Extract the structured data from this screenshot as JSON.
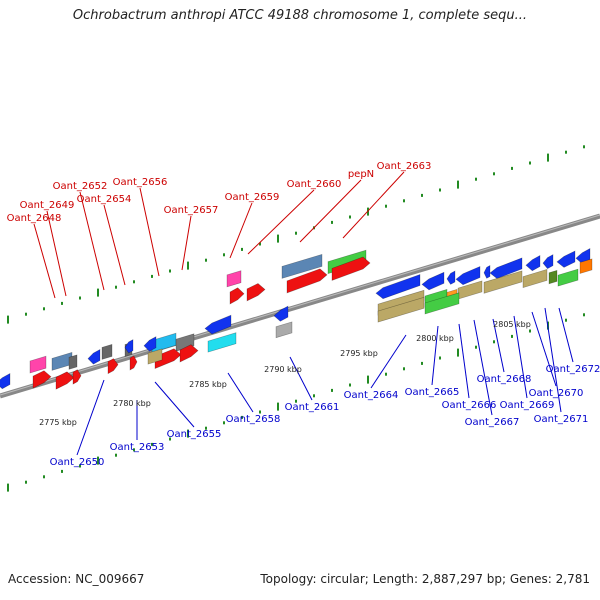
{
  "title": "Ochrobactrum anthropi ATCC 49188 chromosome 1, complete sequ...",
  "footer": {
    "accession": "Accession: NC_009667",
    "topology": "Topology: circular; Length: 2,887,297 bp; Genes: 2,781"
  },
  "colors": {
    "backbone": "#888888",
    "tick": "#228b22",
    "label_forward": "#cc0000",
    "label_reverse": "#0000cc"
  },
  "kbp_labels": [
    "2775 kbp",
    "2780 kbp",
    "2785 kbp",
    "2790 kbp",
    "2795 kbp",
    "2800 kbp",
    "2805 kbp"
  ],
  "genes_forward": [
    "Oant_2648",
    "Oant_2649",
    "Oant_2652",
    "Oant_2654",
    "Oant_2656",
    "Oant_2657",
    "Oant_2659",
    "Oant_2660",
    "pepN",
    "Oant_2663"
  ],
  "genes_reverse": [
    "Oant_2650",
    "Oant_2653",
    "Oant_2655",
    "Oant_2658",
    "Oant_2661",
    "Oant_2664",
    "Oant_2665",
    "Oant_2666",
    "Oant_2667",
    "Oant_2668",
    "Oant_2669",
    "Oant_2670",
    "Oant_2671",
    "Oant_2672"
  ]
}
